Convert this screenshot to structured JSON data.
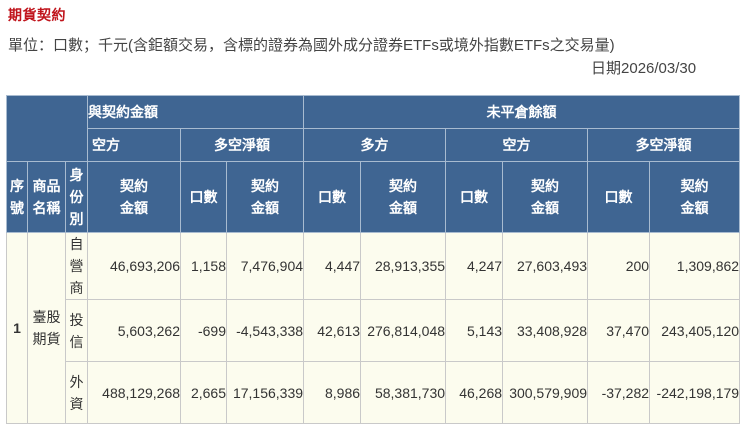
{
  "header": {
    "title": "期貨契約",
    "unit_note": "單位：口數；千元(含鉅額交易，含標的證券為國外成分證券ETFs或境外指數ETFs之交易量)",
    "date_label": "日期",
    "date_value": "2026/03/30"
  },
  "table": {
    "group_headers": {
      "trade_amount": "與契約金額",
      "open_interest": "未平倉餘額"
    },
    "sub_headers": {
      "short": "空方",
      "net": "多空淨額",
      "oi_long": "多方",
      "oi_short": "空方",
      "oi_net": "多空淨額"
    },
    "column_headers": {
      "seq": "序號",
      "product": "商品名稱",
      "identity": "身份別",
      "contracts": "口數",
      "amount": "契約金額"
    },
    "product": {
      "seq": "1",
      "name": "臺股期貨"
    },
    "rows": [
      {
        "identity": "自營商",
        "short_amount": "46,693,206",
        "net_contracts": "1,158",
        "net_amount": "7,476,904",
        "oi_long_contracts": "4,447",
        "oi_long_amount": "28,913,355",
        "oi_short_contracts": "4,247",
        "oi_short_amount": "27,603,493",
        "oi_net_contracts": "200",
        "oi_net_amount": "1,309,862"
      },
      {
        "identity": "投信",
        "short_amount": "5,603,262",
        "net_contracts": "-699",
        "net_amount": "-4,543,338",
        "oi_long_contracts": "42,613",
        "oi_long_amount": "276,814,048",
        "oi_short_contracts": "5,143",
        "oi_short_amount": "33,408,928",
        "oi_net_contracts": "37,470",
        "oi_net_amount": "243,405,120"
      },
      {
        "identity": "外資",
        "short_amount": "488,129,268",
        "net_contracts": "2,665",
        "net_amount": "17,156,339",
        "oi_long_contracts": "8,986",
        "oi_long_amount": "58,381,730",
        "oi_short_contracts": "46,268",
        "oi_short_amount": "300,579,909",
        "oi_net_contracts": "-37,282",
        "oi_net_amount": "-242,198,179"
      }
    ]
  },
  "colors": {
    "title_red": "#c0141c",
    "header_blue": "#3f6592",
    "cell_bg": "#fcfcee",
    "link_blue": "#2a86bf",
    "text": "#333333"
  }
}
